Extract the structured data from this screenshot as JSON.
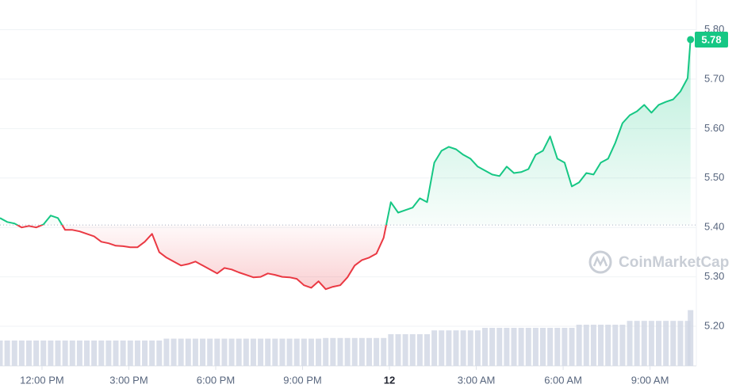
{
  "chart_data": {
    "type": "line",
    "x": [
      -1.45,
      -1.2,
      -0.95,
      -0.7,
      -0.45,
      -0.2,
      0.05,
      0.3,
      0.55,
      0.8,
      1.05,
      1.3,
      1.55,
      1.8,
      2.05,
      2.3,
      2.55,
      2.8,
      3.05,
      3.3,
      3.55,
      3.8,
      4.05,
      4.3,
      4.55,
      4.8,
      5.05,
      5.3,
      5.55,
      5.8,
      6.05,
      6.3,
      6.55,
      6.8,
      7.05,
      7.3,
      7.55,
      7.8,
      8.05,
      8.3,
      8.55,
      8.8,
      9.05,
      9.3,
      9.55,
      9.8,
      10.05,
      10.3,
      10.55,
      10.8,
      11.05,
      11.3,
      11.55,
      11.8,
      12.05,
      12.3,
      12.55,
      12.8,
      13.05,
      13.3,
      13.55,
      13.8,
      14.05,
      14.3,
      14.55,
      14.8,
      15.05,
      15.3,
      15.55,
      15.8,
      16.05,
      16.3,
      16.55,
      16.8,
      17.05,
      17.3,
      17.55,
      17.8,
      18.05,
      18.3,
      18.55,
      18.8,
      19.05,
      19.3,
      19.55,
      19.8,
      20.05,
      20.3,
      20.55,
      20.8,
      21.05,
      21.3,
      21.55,
      21.8,
      22.05,
      22.3,
      22.4
    ],
    "values": [
      5.419,
      5.411,
      5.408,
      5.4,
      5.403,
      5.4,
      5.406,
      5.424,
      5.419,
      5.395,
      5.395,
      5.392,
      5.387,
      5.382,
      5.371,
      5.368,
      5.363,
      5.362,
      5.36,
      5.36,
      5.371,
      5.387,
      5.35,
      5.339,
      5.331,
      5.323,
      5.326,
      5.331,
      5.323,
      5.315,
      5.307,
      5.318,
      5.315,
      5.309,
      5.304,
      5.299,
      5.3,
      5.307,
      5.304,
      5.3,
      5.299,
      5.296,
      5.283,
      5.278,
      5.291,
      5.275,
      5.28,
      5.283,
      5.299,
      5.323,
      5.334,
      5.339,
      5.347,
      5.379,
      5.451,
      5.43,
      5.435,
      5.44,
      5.459,
      5.451,
      5.531,
      5.555,
      5.563,
      5.558,
      5.547,
      5.539,
      5.523,
      5.515,
      5.507,
      5.504,
      5.523,
      5.51,
      5.512,
      5.518,
      5.547,
      5.555,
      5.584,
      5.539,
      5.531,
      5.483,
      5.491,
      5.51,
      5.507,
      5.531,
      5.539,
      5.571,
      5.611,
      5.627,
      5.635,
      5.648,
      5.632,
      5.648,
      5.654,
      5.659,
      5.675,
      5.702,
      5.78
    ],
    "volume": [
      40,
      40,
      40,
      40,
      40,
      40,
      40,
      40,
      40,
      40,
      40,
      40,
      40,
      40,
      40,
      40,
      40,
      40,
      40,
      40,
      40,
      40,
      40,
      43,
      43,
      43,
      43,
      43,
      43,
      43,
      43,
      43,
      43,
      43,
      43,
      43,
      43,
      43,
      43,
      43,
      43,
      43,
      43,
      43,
      43,
      44,
      44,
      44,
      44,
      44,
      44,
      44,
      44,
      44,
      50,
      50,
      50,
      50,
      50,
      50,
      56,
      56,
      56,
      56,
      56,
      56,
      56,
      60,
      60,
      60,
      60,
      60,
      60,
      60,
      60,
      60,
      60,
      60,
      60,
      60,
      65,
      65,
      65,
      65,
      65,
      65,
      65,
      71,
      71,
      71,
      71,
      71,
      71,
      71,
      71,
      71,
      88
    ],
    "volume_lim": [
      0,
      100
    ],
    "baseline": 5.405,
    "up_color": "#16c784",
    "down_color": "#ea3943",
    "volume_color": "#cfd6e4",
    "xlim": [
      -1.45,
      22.6
    ],
    "xticks": [
      {
        "value": 0,
        "label": "12:00 PM"
      },
      {
        "value": 3,
        "label": "3:00 PM"
      },
      {
        "value": 6,
        "label": "6:00 PM"
      },
      {
        "value": 9,
        "label": "9:00 PM"
      },
      {
        "value": 12,
        "label": "12"
      },
      {
        "value": 15,
        "label": "3:00 AM"
      },
      {
        "value": 18,
        "label": "6:00 AM"
      },
      {
        "value": 21,
        "label": "9:00 AM"
      }
    ],
    "ylim": [
      5.12,
      5.86
    ],
    "yticks": [
      {
        "value": 5.2,
        "label": "5.20"
      },
      {
        "value": 5.3,
        "label": "5.30"
      },
      {
        "value": 5.4,
        "label": "5.40"
      },
      {
        "value": 5.5,
        "label": "5.50"
      },
      {
        "value": 5.6,
        "label": "5.60"
      },
      {
        "value": 5.7,
        "label": "5.70"
      },
      {
        "value": 5.8,
        "label": "5.80"
      }
    ],
    "grid": true,
    "watermark": "CoinMarketCap"
  }
}
